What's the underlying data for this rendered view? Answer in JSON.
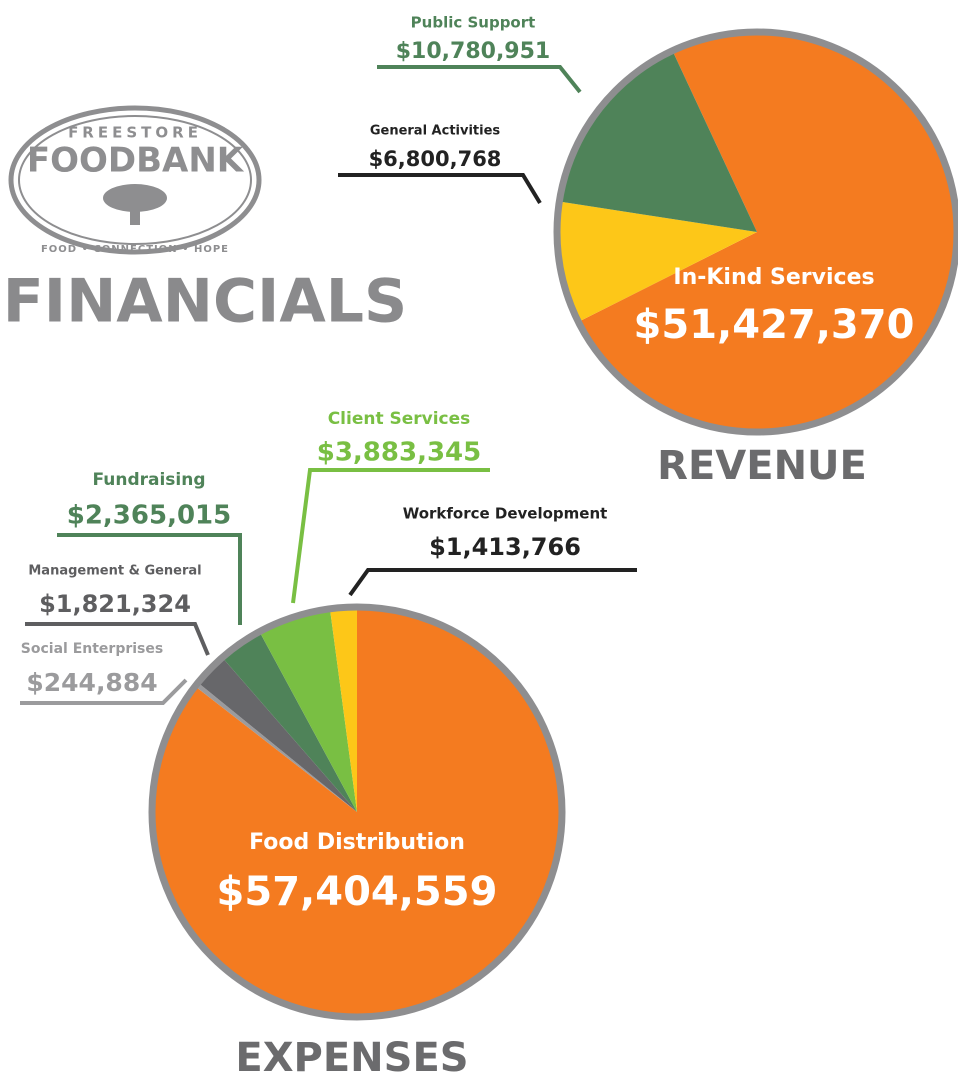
{
  "logo": {
    "top": "FREESTORE",
    "main": "FOODBANK",
    "tagline": "FOOD • CONNECTION • HOPE"
  },
  "heading": "FINANCIALS",
  "chart_data": [
    {
      "type": "pie",
      "title": "REVENUE",
      "categories": [
        "In-Kind Services",
        "General Activities",
        "Public Support"
      ],
      "values": [
        51427370,
        6800768,
        10780951
      ],
      "value_labels": [
        "$51,427,370",
        "$6,800,768",
        "$10,780,951"
      ],
      "colors": [
        "#f47b20",
        "#fdc718",
        "#4f8359"
      ]
    },
    {
      "type": "pie",
      "title": "EXPENSES",
      "categories": [
        "Food Distribution",
        "Social Enterprises",
        "Management & General",
        "Fundraising",
        "Client Services",
        "Workforce Development"
      ],
      "values": [
        57404559,
        244884,
        1821324,
        2365015,
        3883345,
        1413766
      ],
      "value_labels": [
        "$57,404,559",
        "$244,884",
        "$1,821,324",
        "$2,365,015",
        "$3,883,345",
        "$1,413,766"
      ],
      "colors": [
        "#f47b20",
        "#9b9b9d",
        "#67676a",
        "#4f8359",
        "#79bf43",
        "#fdc718"
      ]
    }
  ]
}
